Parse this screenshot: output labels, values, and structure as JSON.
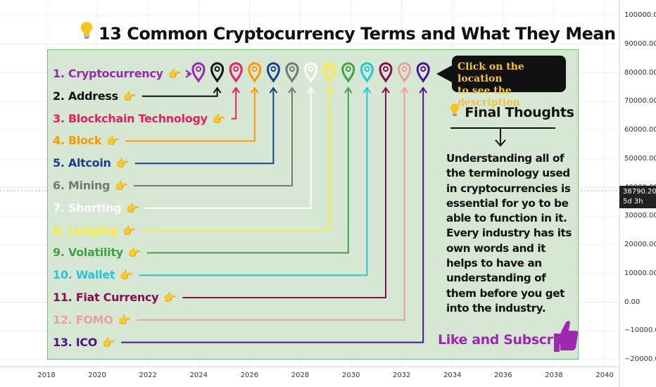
{
  "title": "13 Common Cryptocurrency Terms and What They Mean",
  "callout": {
    "line1": "Click on the location",
    "line2": "to see the description"
  },
  "final_thoughts": {
    "title": "Final Thoughts",
    "body": "Understanding all of the terminology used in cryptocurrencies is essential for yo to be able to function in it. Every industry has its own words and it helps to have an understanding of them before you get into the industry."
  },
  "like_subscribe": "Like and Subscribe",
  "price": {
    "value": "38790.20",
    "countdown": "5d 3h"
  },
  "terms": [
    {
      "label": "1. Cryptocurrency",
      "color": "#9c27b0"
    },
    {
      "label": "2. Address",
      "color": "#111111"
    },
    {
      "label": "3. Blockchain Technology",
      "color": "#e91e63"
    },
    {
      "label": "4. Block",
      "color": "#ff9800"
    },
    {
      "label": "5. Altcoin",
      "color": "#1a3f8c"
    },
    {
      "label": "6. Mining",
      "color": "#777777"
    },
    {
      "label": "7. Shorting",
      "color": "#ffffff"
    },
    {
      "label": "8. Longing",
      "color": "#ffeb3b"
    },
    {
      "label": "9. Volatility",
      "color": "#43a047"
    },
    {
      "label": "10. Wallet",
      "color": "#26c6da"
    },
    {
      "label": "11. Fiat Currency",
      "color": "#880e4f"
    },
    {
      "label": "12. FOMO",
      "color": "#e8a0a0"
    },
    {
      "label": "13. ICO",
      "color": "#4a148c"
    }
  ],
  "chart_data": {
    "type": "line",
    "x_ticks": [
      "2018",
      "2020",
      "2022",
      "2024",
      "2026",
      "2028",
      "2030",
      "2032",
      "2034",
      "2036",
      "2038",
      "2040"
    ],
    "y_ticks": [
      "100000.00",
      "90000.00",
      "80000.00",
      "70000.00",
      "60000.00",
      "50000.00",
      "40000.00",
      "30000.00",
      "20000.00",
      "10000.00",
      "0.00",
      "−10000.00",
      "−20000.00"
    ],
    "ylim": [
      -20000,
      100000
    ],
    "last_price": 38790.2,
    "grid": true
  }
}
